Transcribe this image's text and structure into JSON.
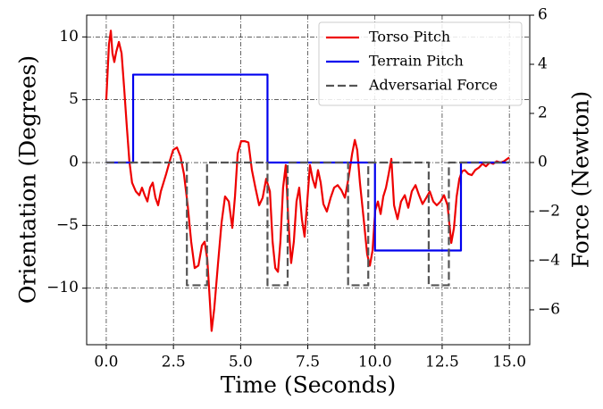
{
  "chart_data": {
    "type": "line",
    "xlabel": "Time (Seconds)",
    "ylabel": "Orientation (Degrees)",
    "y2label": "Force (Newton)",
    "xlim": [
      -0.73,
      15.76
    ],
    "ylim": [
      -14.5,
      11.73
    ],
    "y2lim": [
      -7.42,
      6
    ],
    "xticks": [
      {
        "value": 0,
        "label": "0.0"
      },
      {
        "value": 2.5,
        "label": "2.5"
      },
      {
        "value": 5,
        "label": "5.0"
      },
      {
        "value": 7.5,
        "label": "7.5"
      },
      {
        "value": 10,
        "label": "10.0"
      },
      {
        "value": 12.5,
        "label": "12.5"
      },
      {
        "value": 15,
        "label": "15.0"
      }
    ],
    "yticks": [
      {
        "value": -10,
        "label": "−10"
      },
      {
        "value": -5,
        "label": "−5"
      },
      0,
      5,
      10
    ],
    "y2ticks": [
      {
        "value": -6,
        "label": "−6"
      },
      {
        "value": -4,
        "label": "−4"
      },
      {
        "value": -2,
        "label": "−2"
      },
      0,
      2,
      4,
      6
    ],
    "grid": true,
    "legend": "upper right",
    "series": [
      {
        "name": "Torso Pitch",
        "color": "#ee0000",
        "linestyle": "solid",
        "x": [
          0,
          0.1,
          0.17,
          0.23,
          0.3,
          0.37,
          0.47,
          0.57,
          0.67,
          0.76,
          0.86,
          0.96,
          1.1,
          1.23,
          1.33,
          1.43,
          1.53,
          1.63,
          1.73,
          1.83,
          1.93,
          2.03,
          2.13,
          2.23,
          2.36,
          2.49,
          2.63,
          2.76,
          2.89,
          3.03,
          3.16,
          3.29,
          3.43,
          3.56,
          3.66,
          3.76,
          3.86,
          3.92,
          4.02,
          4.16,
          4.29,
          4.42,
          4.56,
          4.69,
          4.79,
          4.89,
          5.02,
          5.15,
          5.29,
          5.42,
          5.55,
          5.69,
          5.82,
          5.95,
          6.09,
          6.19,
          6.29,
          6.39,
          6.48,
          6.58,
          6.68,
          6.78,
          6.88,
          6.98,
          7.08,
          7.18,
          7.28,
          7.38,
          7.48,
          7.58,
          7.68,
          7.78,
          7.88,
          7.98,
          8.08,
          8.21,
          8.35,
          8.48,
          8.61,
          8.75,
          8.88,
          9.01,
          9.15,
          9.25,
          9.34,
          9.44,
          9.58,
          9.71,
          9.81,
          9.91,
          10.01,
          10.11,
          10.21,
          10.31,
          10.41,
          10.51,
          10.61,
          10.71,
          10.84,
          10.97,
          11.11,
          11.24,
          11.37,
          11.51,
          11.64,
          11.77,
          11.91,
          12.04,
          12.17,
          12.3,
          12.44,
          12.57,
          12.7,
          12.84,
          12.94,
          13.04,
          13.14,
          13.24,
          13.34,
          13.47,
          13.6,
          13.73,
          13.87,
          14.0,
          14.13,
          14.27,
          14.4,
          14.53,
          14.67,
          14.8,
          14.93,
          15.0
        ],
        "values": [
          5.0,
          9.4,
          10.5,
          8.7,
          8.0,
          8.8,
          9.6,
          8.7,
          5.8,
          3.0,
          0.1,
          -1.6,
          -2.3,
          -2.6,
          -2.0,
          -2.6,
          -3.1,
          -2.0,
          -1.6,
          -2.8,
          -3.4,
          -2.3,
          -1.6,
          -0.9,
          0.1,
          1.0,
          1.2,
          0.5,
          -0.9,
          -3.4,
          -6.3,
          -8.4,
          -8.2,
          -6.6,
          -6.3,
          -7.7,
          -11.2,
          -13.4,
          -11.6,
          -8.0,
          -4.8,
          -2.7,
          -3.1,
          -5.2,
          -2.7,
          0.7,
          1.7,
          1.7,
          1.6,
          -0.6,
          -2.0,
          -3.4,
          -2.8,
          -1.3,
          -2.3,
          -6.3,
          -8.4,
          -8.7,
          -6.3,
          -2.0,
          -0.2,
          -4.8,
          -8.0,
          -6.3,
          -3.1,
          -2.0,
          -4.5,
          -5.9,
          -3.1,
          -0.2,
          -1.3,
          -2.0,
          -0.6,
          -1.6,
          -3.3,
          -3.9,
          -2.8,
          -2.0,
          -1.8,
          -2.2,
          -2.8,
          -1.3,
          0.7,
          1.8,
          1.0,
          -1.6,
          -4.5,
          -7.3,
          -8.2,
          -7.0,
          -3.8,
          -3.1,
          -4.1,
          -2.7,
          -2.0,
          -0.9,
          0.3,
          -3.4,
          -4.5,
          -3.1,
          -2.6,
          -3.6,
          -2.3,
          -1.8,
          -2.6,
          -3.3,
          -2.8,
          -2.3,
          -3.1,
          -3.4,
          -3.1,
          -2.6,
          -3.4,
          -6.4,
          -5.2,
          -2.7,
          -1.3,
          -0.7,
          -0.6,
          -0.9,
          -1.0,
          -0.6,
          -0.4,
          -0.1,
          -0.3,
          0,
          -0.1,
          0.1,
          0,
          0.1,
          0.3,
          0.4
        ]
      },
      {
        "name": "Terrain Pitch",
        "color": "#0000ee",
        "linestyle": "solid",
        "x": [
          0,
          1,
          1,
          6,
          6,
          10,
          10,
          13.2,
          13.2,
          15
        ],
        "values": [
          0,
          0,
          7,
          7,
          0,
          0,
          -7,
          -7,
          0,
          0
        ]
      },
      {
        "name": "Adversarial Force",
        "color": "#555555",
        "linestyle": "dashed",
        "axis": "y2",
        "x": [
          0,
          3,
          3,
          3.75,
          3.75,
          6,
          6,
          6.75,
          6.75,
          9,
          9,
          9.75,
          9.75,
          12,
          12,
          12.75,
          12.75,
          15
        ],
        "values": [
          0,
          0,
          -5,
          -5,
          0,
          0,
          -5,
          -5,
          0,
          0,
          -5,
          -5,
          0,
          0,
          -5,
          -5,
          0,
          0
        ]
      }
    ]
  }
}
